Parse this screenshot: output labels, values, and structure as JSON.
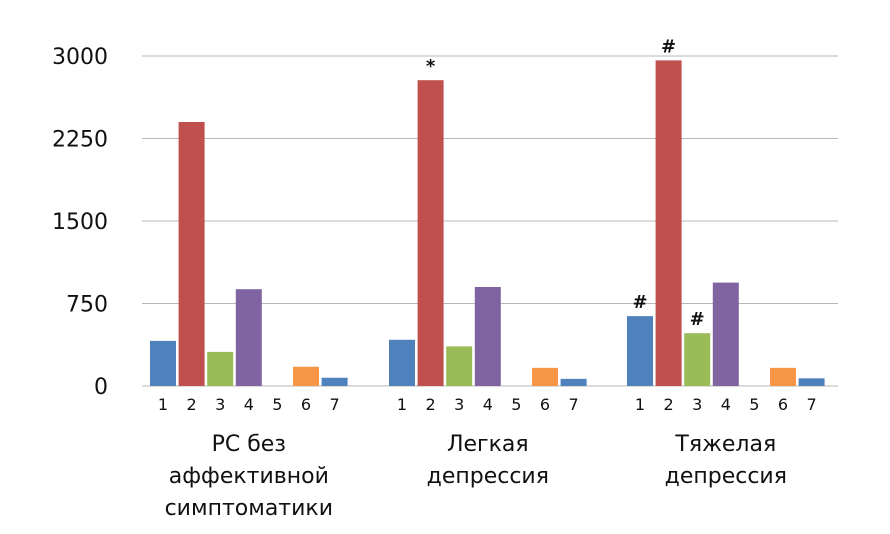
{
  "chart_data": {
    "type": "bar",
    "title": "",
    "xlabel": "",
    "ylabel": "",
    "ylim": [
      0,
      3000
    ],
    "yticks": [
      0,
      750,
      1500,
      2250,
      3000
    ],
    "grid": true,
    "legend": "none",
    "bar_labels": [
      "1",
      "2",
      "3",
      "4",
      "5",
      "6",
      "7"
    ],
    "colors": [
      "#4f81bd",
      "#c0504d",
      "#9bbb59",
      "#8064a2",
      "#4bacc6",
      "#f79646",
      "#4f81bd"
    ],
    "groups": [
      {
        "label_lines": [
          "РС без",
          "аффективной",
          "симптоматики"
        ],
        "values": [
          410,
          2400,
          310,
          880,
          0,
          175,
          75
        ],
        "annotations": [
          "",
          "",
          "",
          "",
          "",
          "",
          ""
        ]
      },
      {
        "label_lines": [
          "Легкая",
          "депрессия"
        ],
        "values": [
          420,
          2780,
          360,
          900,
          0,
          165,
          65
        ],
        "annotations": [
          "",
          "*",
          "",
          "",
          "",
          "",
          ""
        ]
      },
      {
        "label_lines": [
          "Тяжелая",
          "депрессия"
        ],
        "values": [
          635,
          2960,
          480,
          940,
          0,
          165,
          70
        ],
        "annotations": [
          "#",
          "#",
          "#",
          "",
          "",
          "",
          ""
        ]
      }
    ]
  }
}
